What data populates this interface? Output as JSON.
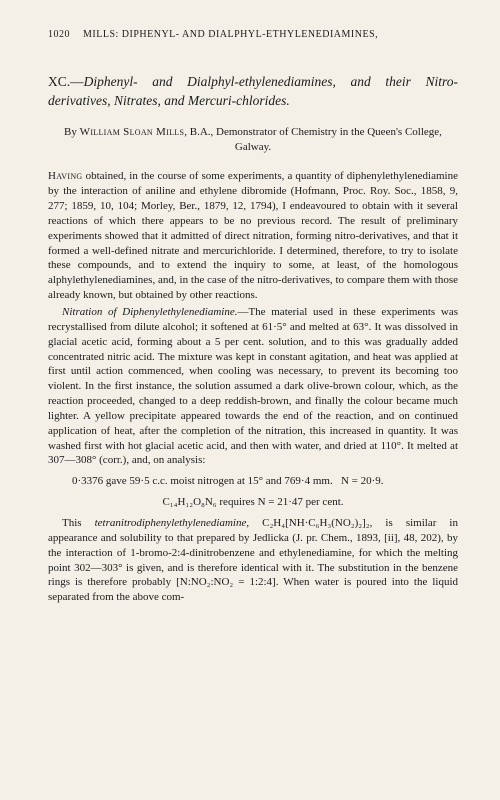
{
  "page_number": "1020",
  "running_head": "MILLS: DIPHENYL- AND DIALPHYL-ETHYLENEDIAMINES,",
  "title_number": "XC.—",
  "title_text": "Diphenyl- and Dialphyl-ethylenediamines, and their Nitro-derivatives, Nitrates, and Mercuri-chlorides.",
  "author_by": "By ",
  "author_name": "William Sloan Mills",
  "author_suffix": ", B.A., Demonstrator of Chemistry in the Queen's College, Galway.",
  "para1_lead": "Having",
  "para1": " obtained, in the course of some experiments, a quantity of diphenylethylenediamine by the interaction of aniline and ethylene dibromide (Hofmann, Proc. Roy. Soc., 1858, 9, 277; 1859, 10, 104; Morley, Ber., 1879, 12, 1794), I endeavoured to obtain with it several reactions of which there appears to be no previous record. The result of preliminary experiments showed that it admitted of direct nitration, forming nitro-derivatives, and that it formed a well-defined nitrate and mercurichloride. I determined, therefore, to try to isolate these compounds, and to extend the inquiry to some, at least, of the homologous alphylethylenediamines, and, in the case of the nitro-derivatives, to compare them with those already known, but obtained by other reactions.",
  "para2_head": "Nitration of Diphenylethylenediamine.",
  "para2": "—The material used in these experiments was recrystallised from dilute alcohol; it softened at 61·5° and melted at 63°. It was dissolved in glacial acetic acid, forming about a 5 per cent. solution, and to this was gradually added concentrated nitric acid. The mixture was kept in constant agitation, and heat was applied at first until action commenced, when cooling was necessary, to prevent its becoming too violent. In the first instance, the solution assumed a dark olive-brown colour, which, as the reaction proceeded, changed to a deep reddish-brown, and finally the colour became much lighter. A yellow precipitate appeared towards the end of the reaction, and on continued application of heat, after the completion of the nitration, this increased in quantity. It was washed first with hot glacial acetic acid, and then with water, and dried at 110°. It melted at 307—308° (corr.), and, on analysis:",
  "analysis_line": "0·3376 gave 59·5 c.c. moist nitrogen at 15° and 769·4 mm.   N = 20·9.",
  "formula_line": "C₁₄H₁₂O₈N₆ requires N = 21·47 per cent.",
  "para3_a": "This ",
  "para3_compound": "tetranitrodiphenylethylenediamine",
  "para3_b": ", C₂H₄[NH·C₆H₃(NO₂)₂]₂, is similar in appearance and solubility to that prepared by Jedlicka (J. pr. Chem., 1893, [ii], 48, 202), by the interaction of 1-bromo-2:4-dinitrobenzene and ethylenediamine, for which the melting point 302—303° is given, and is therefore identical with it. The substitution in the benzene rings is therefore probably [N:NO₂:NO₂ = 1:2:4]. When water is poured into the liquid separated from the above com-"
}
